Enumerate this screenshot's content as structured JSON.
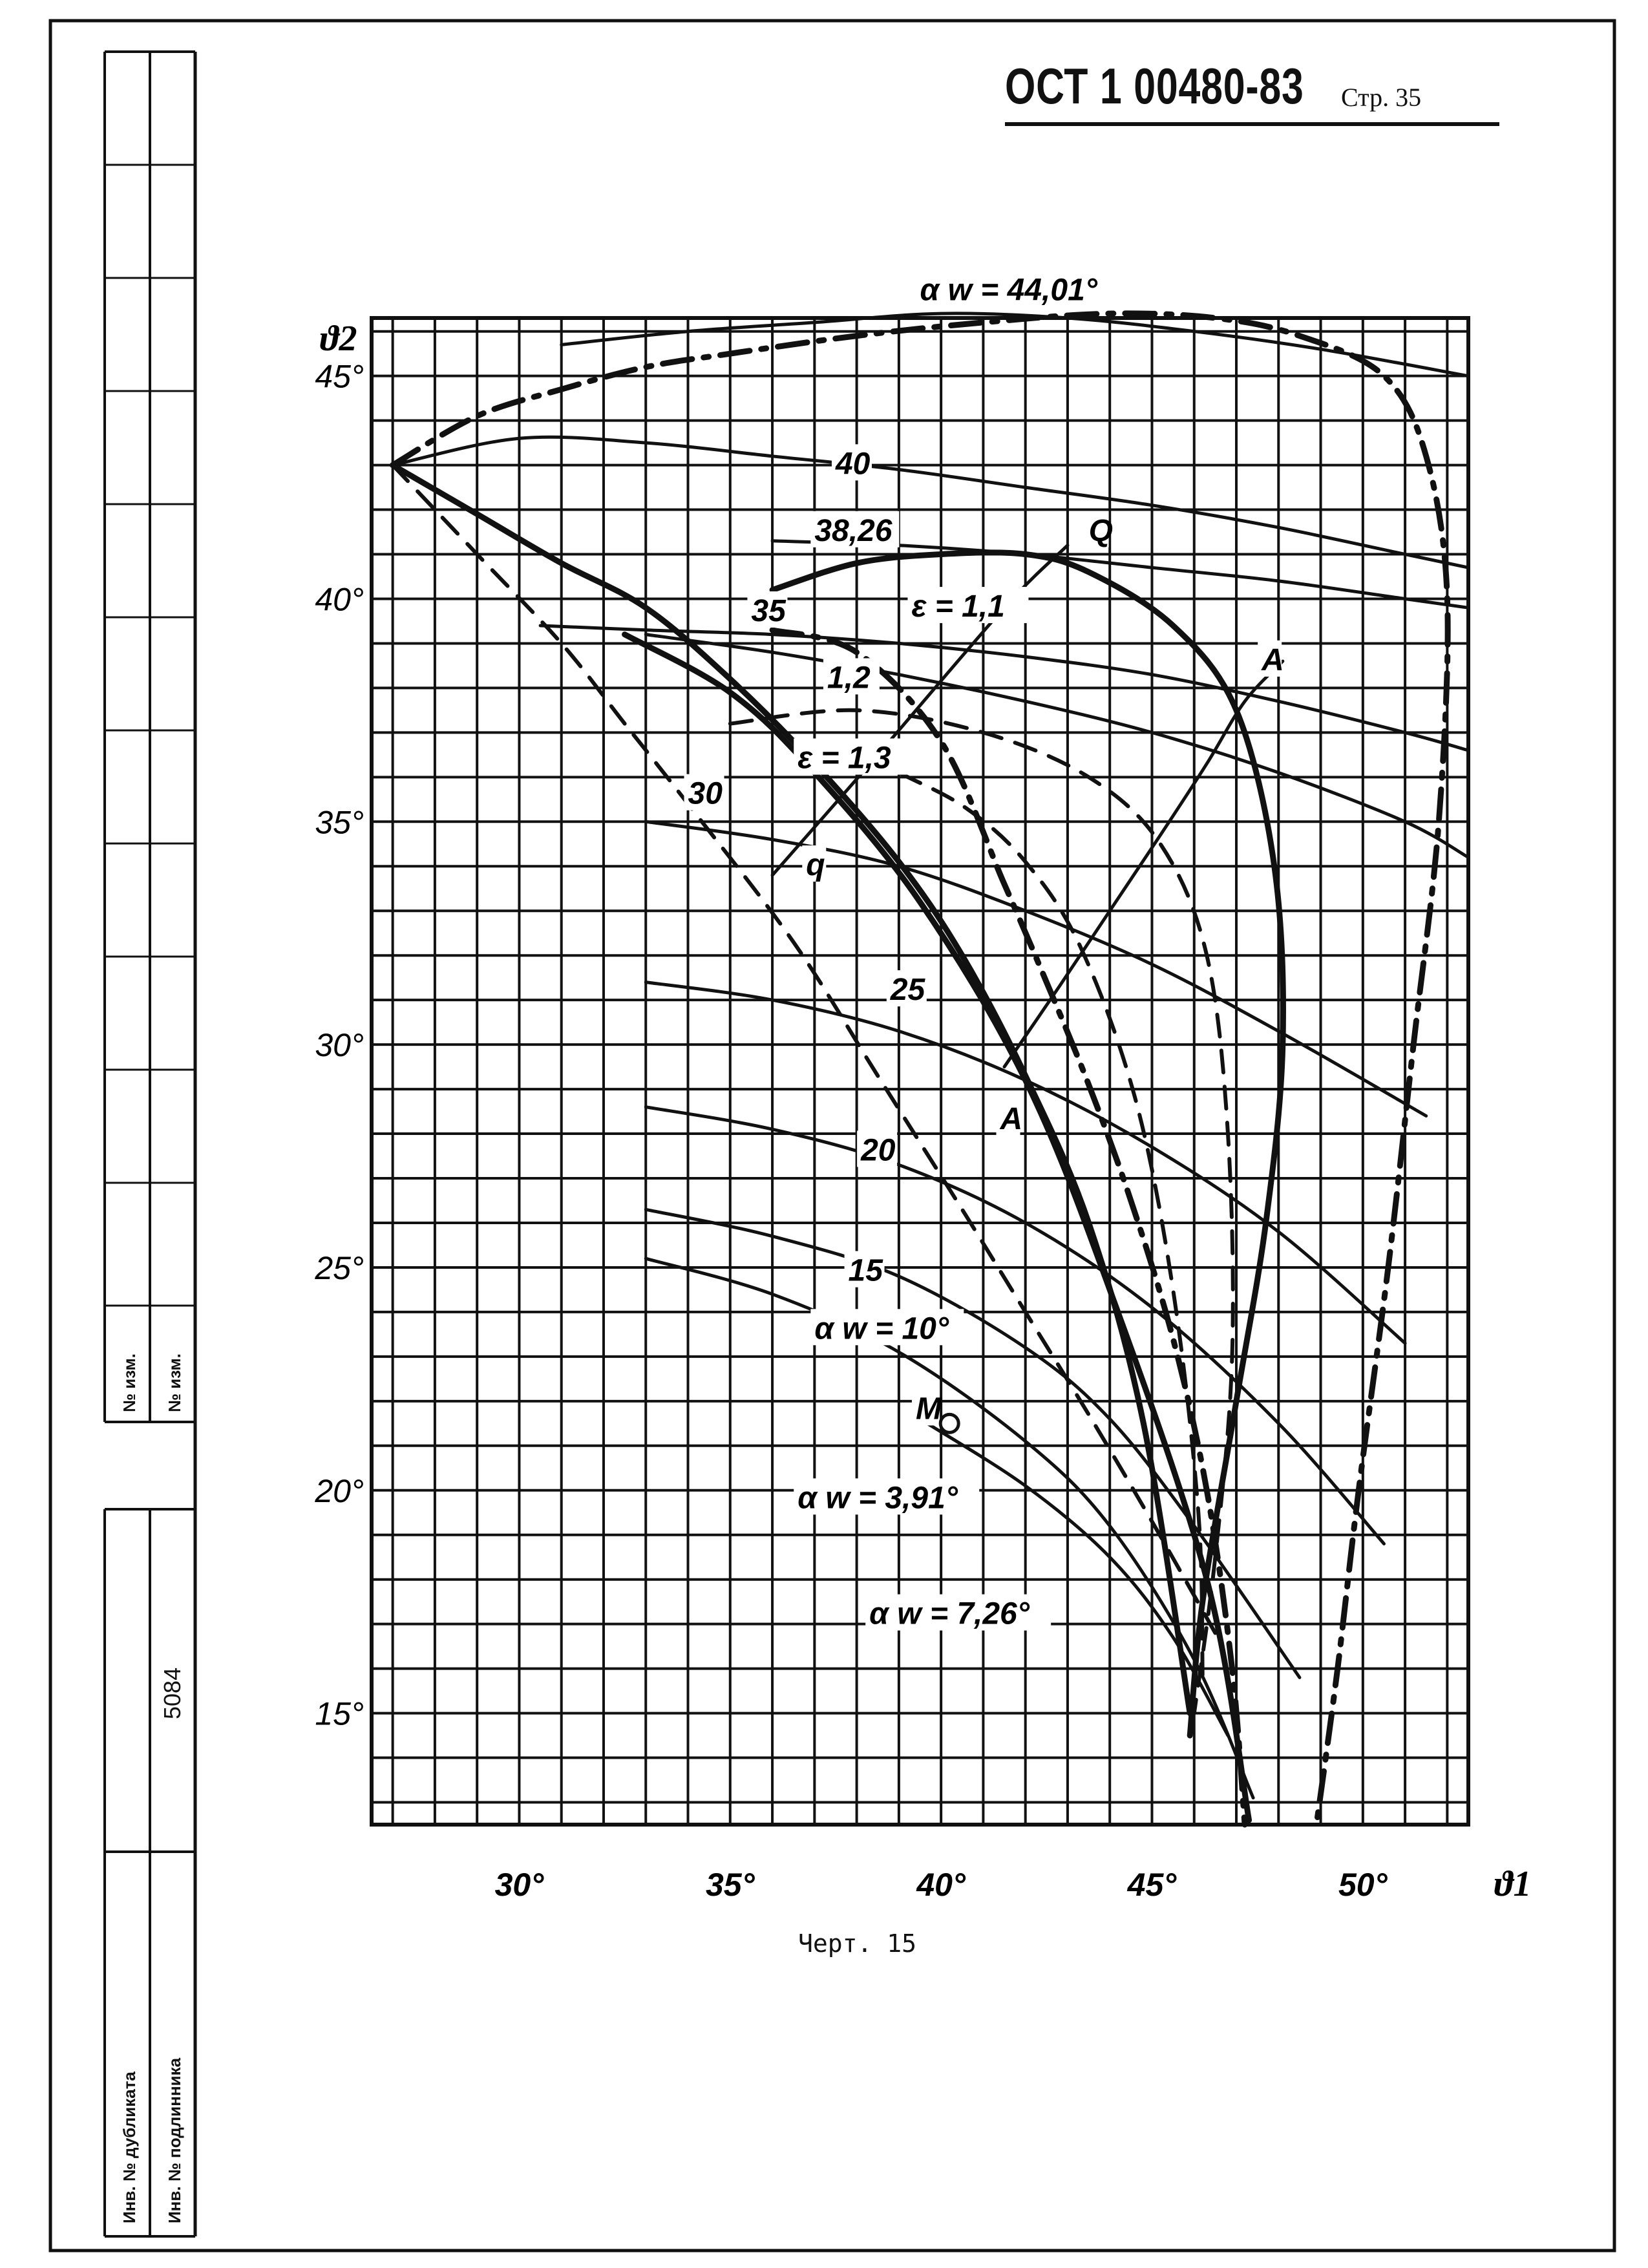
{
  "header": {
    "standard_code": "ОСТ 1 00480-83",
    "page_label": "Стр. 35"
  },
  "caption": "Черт. 15",
  "side_block": {
    "change_no_1": "№ изм.",
    "change_no_2": "№ изм.",
    "inventory_number": "5084",
    "duplicate_label": "Инв. № дубликата",
    "original_label": "Инв. № подлинника"
  },
  "chart_data": {
    "type": "line",
    "title": "",
    "xlabel": "ϑ1",
    "ylabel": "ϑ2",
    "xlim": [
      26.5,
      52.5
    ],
    "ylim": [
      12.5,
      46.3
    ],
    "grid": true,
    "x_ticks": [
      {
        "value": 30,
        "label": "30°"
      },
      {
        "value": 35,
        "label": "35°"
      },
      {
        "value": 40,
        "label": "40°"
      },
      {
        "value": 45,
        "label": "45°"
      },
      {
        "value": 50,
        "label": "50°"
      }
    ],
    "y_ticks": [
      {
        "value": 15,
        "label": "15°"
      },
      {
        "value": 20,
        "label": "20°"
      },
      {
        "value": 25,
        "label": "25°"
      },
      {
        "value": 30,
        "label": "30°"
      },
      {
        "value": 35,
        "label": "35°"
      },
      {
        "value": 40,
        "label": "40°"
      },
      {
        "value": 45,
        "label": "45°"
      }
    ],
    "curve_labels": [
      {
        "text": "α w = 44,01°",
        "x": 39.5,
        "y": 46.7
      },
      {
        "text": "40",
        "x": 37.5,
        "y": 42.8
      },
      {
        "text": "38,26",
        "x": 37.0,
        "y": 41.3
      },
      {
        "text": "35",
        "x": 35.5,
        "y": 39.5
      },
      {
        "text": "30",
        "x": 34.0,
        "y": 35.4
      },
      {
        "text": "25",
        "x": 38.8,
        "y": 31.0
      },
      {
        "text": "20",
        "x": 38.1,
        "y": 27.4
      },
      {
        "text": "15",
        "x": 37.8,
        "y": 24.7
      },
      {
        "text": "α w = 10°",
        "x": 37.0,
        "y": 23.4
      },
      {
        "text": "α w = 3,91°",
        "x": 36.6,
        "y": 19.6
      },
      {
        "text": "α w = 7,26°",
        "x": 38.3,
        "y": 17.0
      },
      {
        "text": "ε = 1,1",
        "x": 39.3,
        "y": 39.6
      },
      {
        "text": "1,2",
        "x": 37.3,
        "y": 38.0
      },
      {
        "text": "ε = 1,3",
        "x": 36.6,
        "y": 36.2
      },
      {
        "text": "Q",
        "x": 43.5,
        "y": 41.3
      },
      {
        "text": "A",
        "x": 47.6,
        "y": 38.4
      },
      {
        "text": "q",
        "x": 36.8,
        "y": 33.8
      },
      {
        "text": "A",
        "x": 41.4,
        "y": 28.1
      },
      {
        "text": "M",
        "x": 39.4,
        "y": 21.6
      }
    ],
    "series": [
      {
        "style": "solid",
        "x": [
          31,
          34,
          37,
          40,
          43,
          46,
          49,
          52.5
        ],
        "y": [
          45.7,
          46.0,
          46.2,
          46.4,
          46.3,
          46.0,
          45.6,
          45.0
        ]
      },
      {
        "style": "solid",
        "x": [
          27,
          30,
          33,
          36,
          39,
          42,
          45,
          48,
          51,
          52.5
        ],
        "y": [
          43.0,
          43.6,
          43.5,
          43.2,
          42.9,
          42.5,
          42.1,
          41.6,
          41.0,
          40.7
        ]
      },
      {
        "style": "solid",
        "x": [
          36,
          39,
          42,
          45,
          48,
          51,
          52.5
        ],
        "y": [
          41.3,
          41.2,
          41.0,
          40.7,
          40.4,
          40.0,
          39.8
        ]
      },
      {
        "style": "solid",
        "x": [
          30.5,
          33,
          36,
          39,
          42,
          45,
          48,
          51,
          52.5
        ],
        "y": [
          39.4,
          39.3,
          39.2,
          39.0,
          38.7,
          38.3,
          37.7,
          37.0,
          36.6
        ]
      },
      {
        "style": "solid",
        "x": [
          33,
          36,
          39,
          42,
          45,
          48,
          51,
          52.5
        ],
        "y": [
          39.2,
          38.8,
          38.3,
          37.7,
          37.0,
          36.1,
          35.0,
          34.2
        ]
      },
      {
        "style": "solid",
        "x": [
          33,
          36,
          39,
          42,
          45,
          48,
          51.5
        ],
        "y": [
          35.0,
          34.6,
          34.0,
          33.0,
          31.8,
          30.3,
          28.4
        ]
      },
      {
        "style": "solid",
        "x": [
          33,
          36,
          39,
          42,
          45,
          48,
          51
        ],
        "y": [
          31.4,
          31.0,
          30.3,
          29.2,
          27.7,
          25.8,
          23.3
        ]
      },
      {
        "style": "solid",
        "x": [
          33,
          36,
          39,
          42,
          45,
          48,
          50.5
        ],
        "y": [
          28.6,
          28.1,
          27.3,
          26.0,
          24.1,
          21.5,
          18.8
        ]
      },
      {
        "style": "solid",
        "x": [
          33,
          36,
          39,
          42,
          44,
          46,
          48.5
        ],
        "y": [
          26.3,
          25.7,
          24.8,
          23.2,
          21.6,
          19.2,
          15.8
        ]
      },
      {
        "style": "solid",
        "x": [
          33,
          36,
          39,
          42,
          44,
          46,
          47.4
        ],
        "y": [
          25.2,
          24.4,
          23.1,
          21.1,
          19.2,
          16.2,
          13.1
        ]
      },
      {
        "style": "solid",
        "x": [
          39.5,
          42,
          44,
          45.5,
          46.8
        ],
        "y": [
          21.6,
          20.1,
          18.5,
          16.7,
          14.5
        ]
      },
      {
        "style": "solid",
        "x": [
          36,
          38,
          40,
          42,
          43.5,
          45.5,
          47,
          47.9,
          48.1,
          47.7,
          47.0,
          46.2,
          45.9
        ],
        "y": [
          40.2,
          40.8,
          41.0,
          41.0,
          40.6,
          39.4,
          37.5,
          34.0,
          30.0,
          26.0,
          22.0,
          17.5,
          14.5
        ]
      },
      {
        "style": "solid",
        "x": [
          27,
          29,
          31,
          33,
          35,
          37,
          39,
          40.5,
          42,
          43.5,
          44.8,
          45.9
        ],
        "y": [
          43.0,
          41.9,
          40.8,
          39.8,
          38.2,
          36.3,
          34.1,
          32.0,
          29.3,
          26.0,
          21.5,
          15.0
        ]
      },
      {
        "style": "solid",
        "x": [
          32.5,
          35,
          37,
          39.5,
          42,
          44,
          46.3,
          47.3
        ],
        "y": [
          39.2,
          37.9,
          36.1,
          33.2,
          29.2,
          24.5,
          18.0,
          12.6
        ]
      },
      {
        "style": "solid",
        "x": [
          36.0,
          38.5,
          41.5,
          43.0
        ],
        "y": [
          33.8,
          36.5,
          39.8,
          41.2
        ]
      },
      {
        "style": "solid",
        "x": [
          41.5,
          42.8,
          44.0,
          45.2,
          46.3,
          47.2,
          48.1
        ],
        "y": [
          29.5,
          31.3,
          33.0,
          34.7,
          36.3,
          37.7,
          38.6
        ]
      },
      {
        "style": "dashdot",
        "x": [
          27,
          29,
          31,
          33,
          35,
          38,
          41,
          44,
          46.5,
          48.5,
          50.5,
          51.5,
          52.0,
          51.8,
          51.2,
          50.6,
          49.9,
          49.4,
          48.9
        ],
        "y": [
          43.0,
          44.1,
          44.7,
          45.2,
          45.5,
          45.9,
          46.2,
          46.4,
          46.3,
          45.9,
          45.0,
          43.2,
          40.0,
          35.0,
          30.0,
          25.0,
          20.0,
          16.0,
          12.5
        ]
      },
      {
        "style": "dashdot",
        "x": [
          36,
          38,
          40,
          41.5,
          42.5,
          43.5,
          44.5,
          45.5,
          46.3,
          46.9,
          47.2
        ],
        "y": [
          39.3,
          38.8,
          36.8,
          33.6,
          31.4,
          29.1,
          26.5,
          23.4,
          20.0,
          16.0,
          12.5
        ]
      },
      {
        "style": "dashed",
        "x": [
          27,
          29,
          31,
          32.5,
          34,
          36.5,
          38.5,
          40.5,
          42,
          43.5,
          45,
          46.5
        ],
        "y": [
          43.0,
          41.0,
          39.0,
          37.2,
          35.4,
          32.3,
          29.3,
          26.3,
          24.0,
          21.7,
          19.3,
          16.8
        ]
      },
      {
        "style": "dashed",
        "x": [
          35,
          38,
          41,
          43.5,
          45.2,
          46.3,
          46.8,
          46.9,
          46.5,
          46.0
        ],
        "y": [
          37.2,
          37.5,
          37.0,
          36.0,
          34.5,
          32.0,
          28.0,
          23.0,
          18.5,
          15.0
        ]
      },
      {
        "style": "dashed",
        "x": [
          37.5,
          39,
          40.6,
          42.0,
          43.3,
          44.6,
          45.5,
          46.1,
          46.2
        ],
        "y": [
          36.8,
          36.1,
          35.3,
          34.1,
          32.2,
          28.8,
          24.5,
          19.5,
          15.8
        ]
      }
    ],
    "points": [
      {
        "label": "M",
        "x": 40.2,
        "y": 21.5,
        "marker": "open-circle"
      }
    ]
  }
}
